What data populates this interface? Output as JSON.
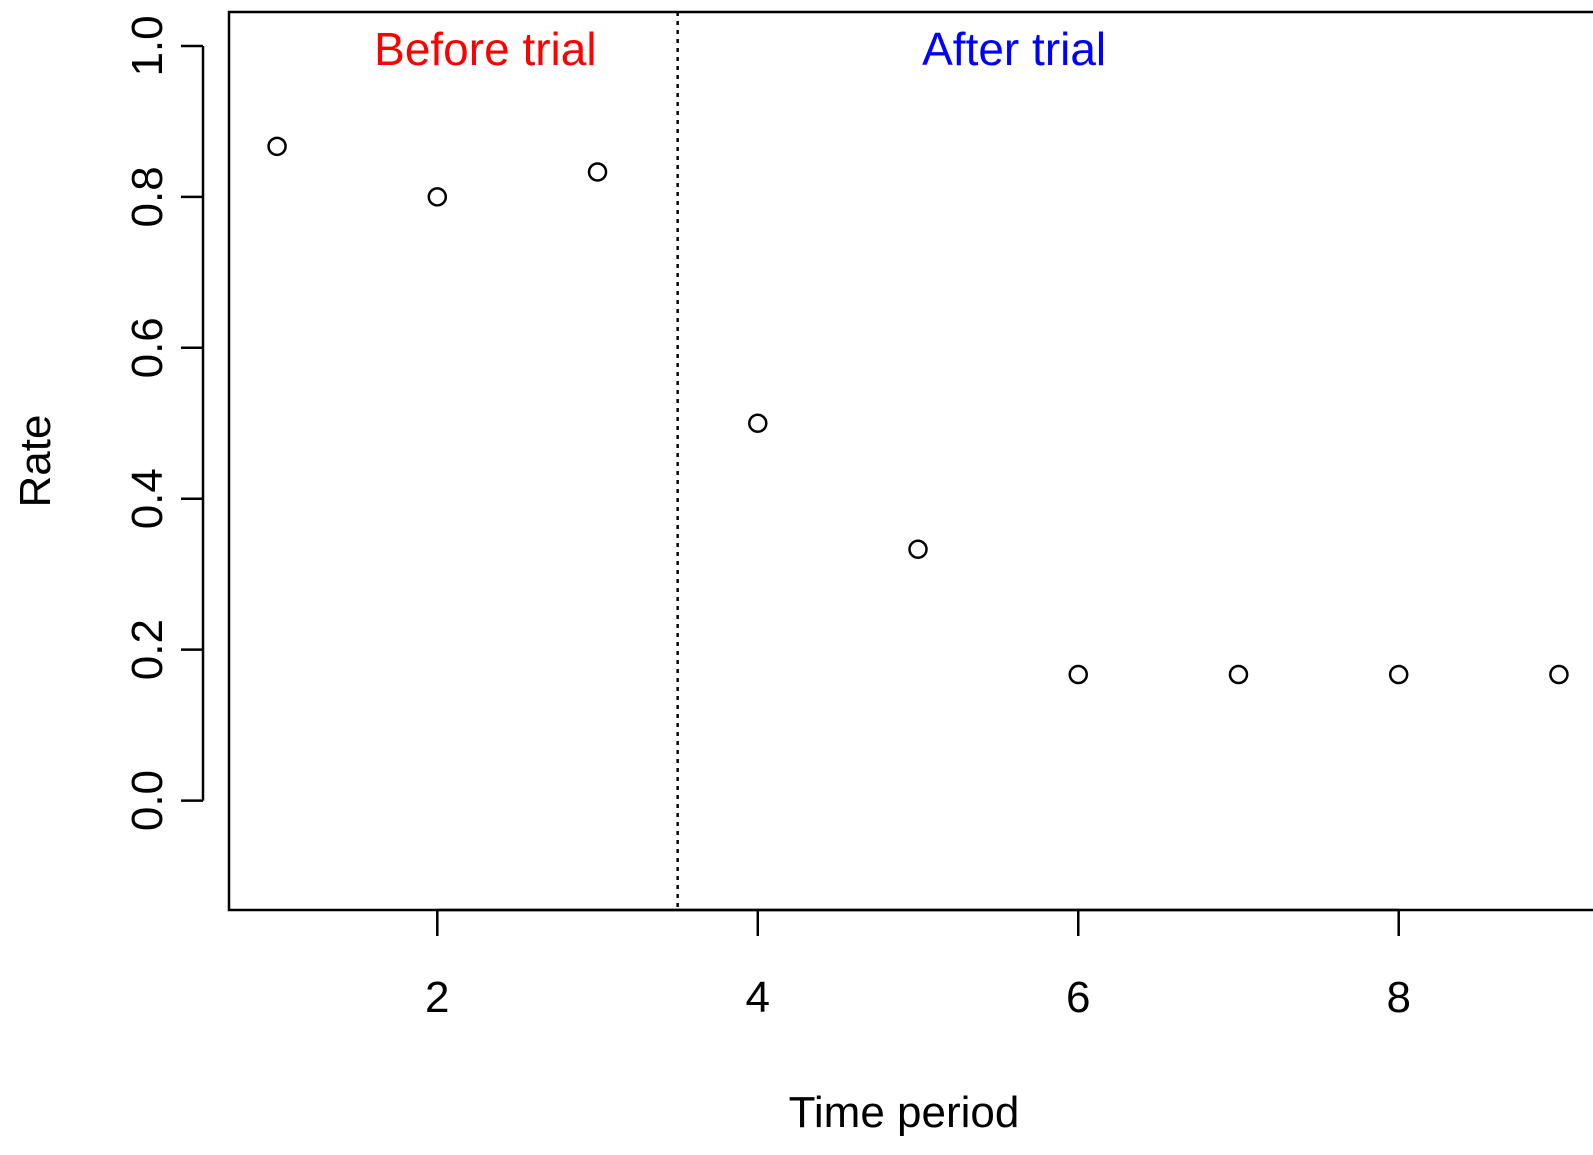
{
  "chart_data": {
    "type": "scatter",
    "title": "",
    "xlabel": "Time period",
    "ylabel": "Rate",
    "xlim": [
      0.7,
      9.25
    ],
    "ylim": [
      -0.145,
      1.045
    ],
    "x_ticks": [
      2,
      4,
      6,
      8
    ],
    "x_tick_labels": [
      "2",
      "4",
      "6",
      "8"
    ],
    "y_ticks": [
      0.0,
      0.2,
      0.4,
      0.6,
      0.8,
      1.0
    ],
    "y_tick_labels": [
      "0.0",
      "0.2",
      "0.4",
      "0.6",
      "0.8",
      "1.0"
    ],
    "grid": false,
    "legend": "none",
    "x": [
      1,
      2,
      3,
      4,
      5,
      6,
      7,
      8,
      9
    ],
    "y": [
      0.867,
      0.8,
      0.833,
      0.5,
      0.333,
      0.167,
      0.167,
      0.167,
      0.167
    ],
    "marker": "open-circle",
    "marker_color": "#000000",
    "vline": {
      "x": 3.5,
      "style": "dotted",
      "color": "#000000"
    },
    "annotations": [
      {
        "text": "Before trial",
        "x": 2.3,
        "y": 0.975,
        "color": "#ff0000"
      },
      {
        "text": "After trial",
        "x": 5.6,
        "y": 0.975,
        "color": "#0000ff"
      }
    ]
  }
}
